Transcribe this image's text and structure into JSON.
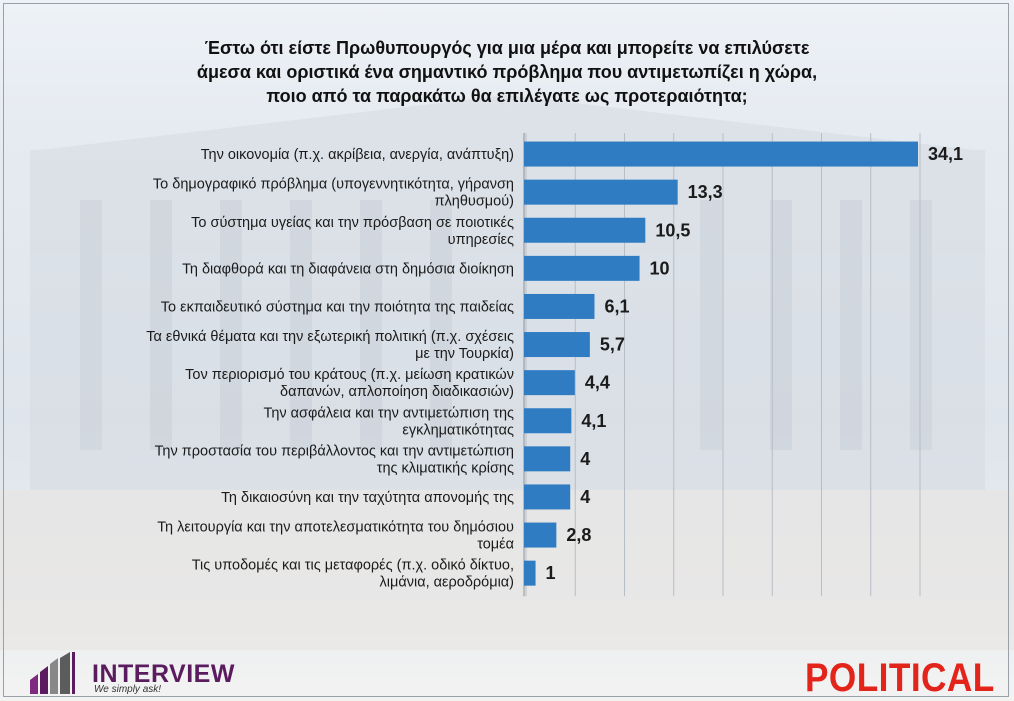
{
  "title": {
    "line1": "Έστω ότι είστε Πρωθυπουργός για μια μέρα και μπορείτε να επιλύσετε",
    "line2": "άμεσα και οριστικά ένα σημαντικό πρόβλημα που αντιμετωπίζει η χώρα,",
    "line3": "ποιο από τα παρακάτω θα επιλέγατε ως προτεραιότητα;"
  },
  "chart_data": {
    "type": "bar",
    "orientation": "horizontal",
    "categories": [
      [
        "Την οικονομία (π.χ. ακρίβεια, ανεργία, ανάπτυξη)"
      ],
      [
        "Το δημογραφικό πρόβλημα (υπογεννητικότητα, γήρανση",
        "πληθυσμού)"
      ],
      [
        "Το σύστημα υγείας και την πρόσβαση σε ποιοτικές",
        "υπηρεσίες"
      ],
      [
        "Τη διαφθορά και τη διαφάνεια στη δημόσια διοίκηση"
      ],
      [
        "Το εκπαιδευτικό σύστημα και την ποιότητα της παιδείας"
      ],
      [
        "Τα εθνικά θέματα και την εξωτερική πολιτική (π.χ. σχέσεις",
        "με την Τουρκία)"
      ],
      [
        "Τον περιορισμό του κράτους (π.χ. μείωση κρατικών",
        "δαπανών, απλοποίηση διαδικασιών)"
      ],
      [
        "Την ασφάλεια και την αντιμετώπιση της",
        "εγκληματικότητας"
      ],
      [
        "Την προστασία του περιβάλλοντος και την αντιμετώπιση",
        "της κλιματικής κρίσης"
      ],
      [
        "Τη δικαιοσύνη και την ταχύτητα απονομής της"
      ],
      [
        "Τη λειτουργία και την αποτελεσματικότητα του δημόσιου",
        "τομέα"
      ],
      [
        "Τις υποδομές και τις μεταφορές (π.χ. οδικό δίκτυο,",
        "λιμάνια, αεροδρόμια)"
      ]
    ],
    "values": [
      34.1,
      13.3,
      10.5,
      10,
      6.1,
      5.7,
      4.4,
      4.1,
      4,
      4,
      2.8,
      1
    ],
    "value_labels": [
      "34,1",
      "13,3",
      "10,5",
      "10",
      "6,1",
      "5,7",
      "4,4",
      "4,1",
      "4",
      "4",
      "2,8",
      "1"
    ],
    "xlim": [
      0,
      34.1
    ],
    "grid": true,
    "bar_color": "#2f7cc3",
    "legend": "none"
  },
  "logos": {
    "interview_name": "INTERVIEW",
    "interview_tagline": "We simply ask!",
    "political": "POLITICAL",
    "interview_color": "#5a1c5e",
    "political_color": "#e3241b"
  }
}
